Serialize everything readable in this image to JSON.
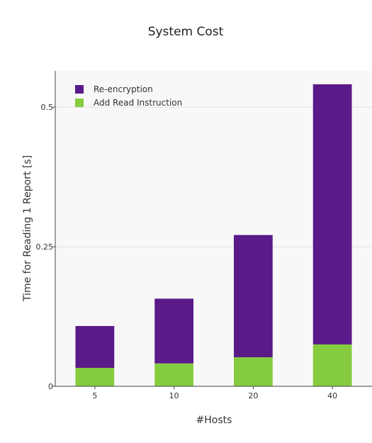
{
  "chart_data": {
    "type": "bar",
    "stacked": true,
    "title": "System Cost",
    "xlabel": "#Hosts",
    "ylabel": "Time for Reading 1 Report [s]",
    "categories": [
      "5",
      "10",
      "20",
      "40"
    ],
    "series": [
      {
        "name": "Add Read Instruction",
        "color": "#86cc3f",
        "values": [
          0.033,
          0.041,
          0.052,
          0.075
        ]
      },
      {
        "name": "Re-encryption",
        "color": "#5a1a8a",
        "values": [
          0.075,
          0.116,
          0.219,
          0.466
        ]
      }
    ],
    "legend_order": [
      1,
      0
    ],
    "yticks": [
      0,
      0.25,
      0.5
    ],
    "ytick_labels": [
      "0",
      "0.25",
      "0.5"
    ],
    "ylim": [
      0,
      0.565
    ],
    "grid": true,
    "legend_position": "top-left",
    "plot_background": "#f8f8f8",
    "grid_color": "#e2e2e2"
  }
}
